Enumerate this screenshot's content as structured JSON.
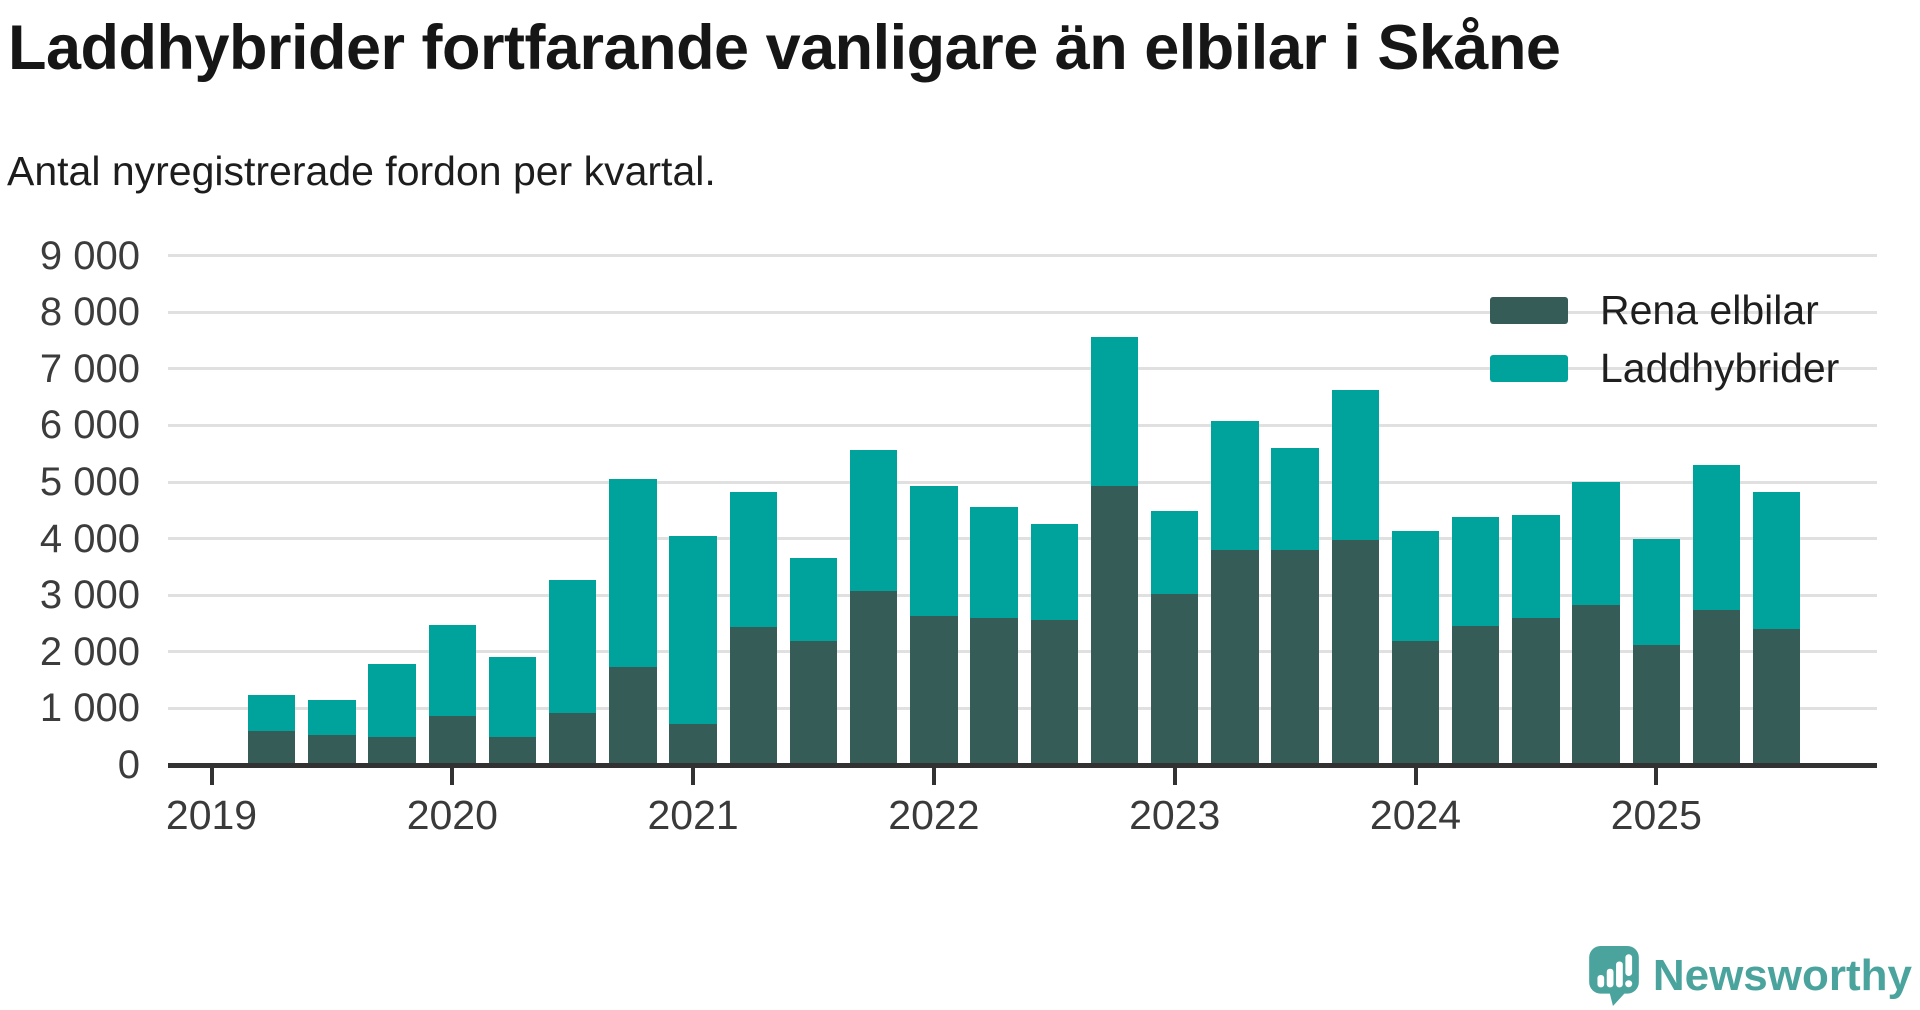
{
  "title": "Laddhybrider fortfarande vanligare än elbilar i Skåne",
  "subtitle": "Antal nyregistrerade fordon per kvartal.",
  "legend": {
    "items": [
      {
        "label": "Rena elbilar",
        "color": "#365c57"
      },
      {
        "label": "Laddhybrider",
        "color": "#00a39b"
      }
    ]
  },
  "branding": {
    "logo_text": "Newsworthy",
    "logo_color": "#4aa49d",
    "logo_icon": "speech-bubble-bar-chart-exclamation"
  },
  "chart_data": {
    "type": "bar",
    "stacked": true,
    "title": "Laddhybrider fortfarande vanligare än elbilar i Skåne",
    "subtitle": "Antal nyregistrerade fordon per kvartal.",
    "categories": [
      "2019-Q2",
      "2019-Q3",
      "2019-Q4",
      "2020-Q1",
      "2020-Q2",
      "2020-Q3",
      "2020-Q4",
      "2021-Q1",
      "2021-Q2",
      "2021-Q3",
      "2021-Q4",
      "2022-Q1",
      "2022-Q2",
      "2022-Q3",
      "2022-Q4",
      "2023-Q1",
      "2023-Q2",
      "2023-Q3",
      "2023-Q4",
      "2024-Q1",
      "2024-Q2",
      "2024-Q3",
      "2024-Q4",
      "2025-Q1",
      "2025-Q2",
      "2025-Q3"
    ],
    "series": [
      {
        "name": "Rena elbilar",
        "color": "#365c57",
        "values": [
          600,
          530,
          490,
          860,
          490,
          910,
          1740,
          720,
          2440,
          2190,
          3070,
          2630,
          2600,
          2560,
          4930,
          3020,
          3800,
          3790,
          3980,
          2190,
          2460,
          2600,
          2820,
          2120,
          2740,
          2400
        ]
      },
      {
        "name": "Laddhybrider",
        "color": "#00a39b",
        "values": [
          640,
          610,
          1300,
          1620,
          1420,
          2350,
          3320,
          3320,
          2380,
          1460,
          2490,
          2300,
          1950,
          1690,
          2630,
          1470,
          2280,
          1810,
          2650,
          1950,
          1930,
          1810,
          2180,
          1880,
          2560,
          2420
        ]
      }
    ],
    "x_tick_labels": [
      "2019",
      "2020",
      "2021",
      "2022",
      "2023",
      "2024",
      "2025"
    ],
    "y_axis": {
      "min": 0,
      "max": 9000,
      "step": 1000,
      "tick_labels": [
        "0",
        "1 000",
        "2 000",
        "3 000",
        "4 000",
        "5 000",
        "6 000",
        "7 000",
        "8 000",
        "9 000"
      ]
    },
    "grid": true,
    "legend_position": "top-right",
    "colors": {
      "axis": "#323232",
      "gridline": "#e0e0e0",
      "tick_text": "#3c3c3c"
    }
  }
}
